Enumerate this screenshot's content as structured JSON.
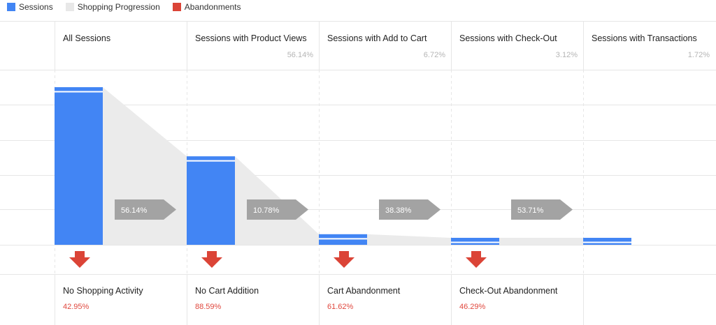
{
  "legend": [
    {
      "label": "Sessions",
      "color": "#4285f4"
    },
    {
      "label": "Shopping Progression",
      "color": "#e8e8e8"
    },
    {
      "label": "Abandonments",
      "color": "#db4437"
    }
  ],
  "chart_data": {
    "type": "bar",
    "categories": [
      "All Sessions",
      "Sessions with Product Views",
      "Sessions with Add to Cart",
      "Sessions with Check-Out",
      "Sessions with Transactions"
    ],
    "stage_percent_labels": [
      "",
      "56.14%",
      "6.72%",
      "3.12%",
      "1.72%"
    ],
    "values": [
      100,
      56.14,
      6.72,
      3.12,
      1.72
    ],
    "progression_labels": [
      "56.14%",
      "10.78%",
      "38.38%",
      "53.71%"
    ],
    "abandonments": [
      {
        "label": "No Shopping Activity",
        "percent": "42.95%"
      },
      {
        "label": "No Cart Addition",
        "percent": "88.59%"
      },
      {
        "label": "Cart Abandonment",
        "percent": "61.62%"
      },
      {
        "label": "Check-Out Abandonment",
        "percent": "46.29%"
      }
    ],
    "colors": {
      "sessions": "#4285f4",
      "progression": "#ebebeb",
      "abandonment": "#db4437",
      "arrow": "#a3a3a3"
    },
    "ylim": [
      0,
      100
    ],
    "grid": true
  }
}
